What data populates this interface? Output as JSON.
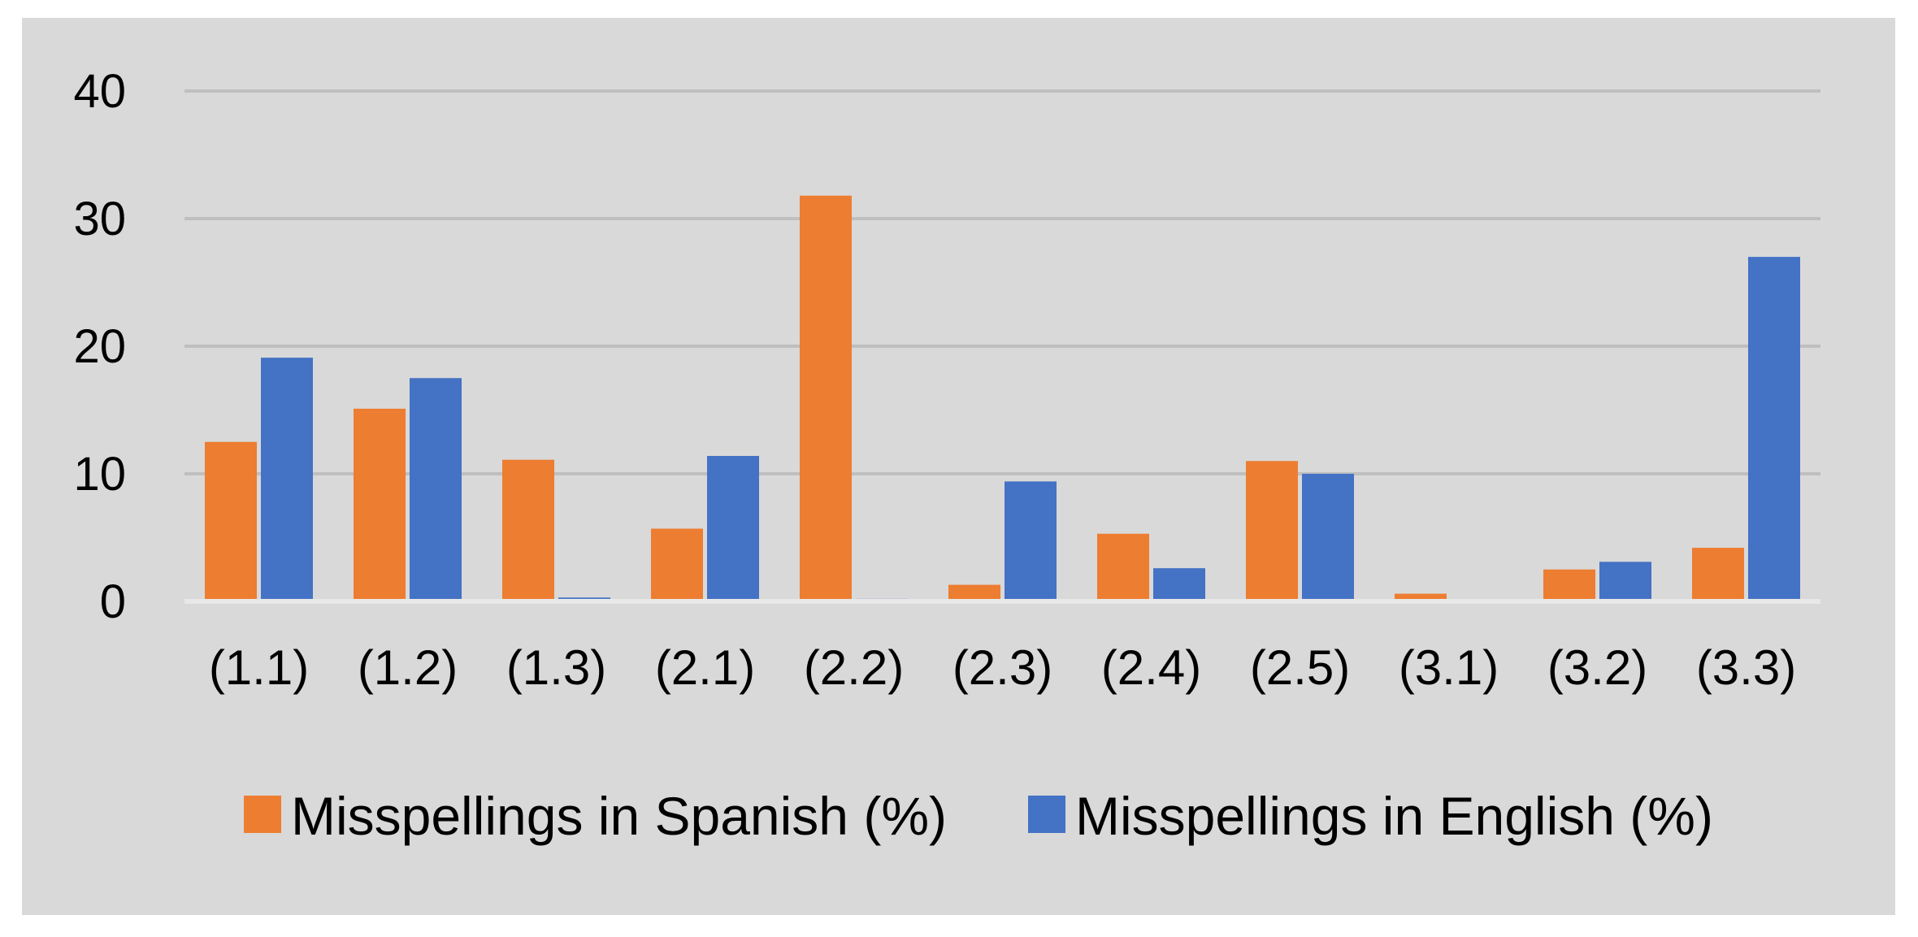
{
  "chart_data": {
    "type": "bar",
    "title": "",
    "xlabel": "",
    "ylabel": "",
    "categories": [
      "(1.1)",
      "(1.2)",
      "(1.3)",
      "(2.1)",
      "(2.2)",
      "(2.3)",
      "(2.4)",
      "(2.5)",
      "(3.1)",
      "(3.2)",
      "(3.3)"
    ],
    "series": [
      {
        "name": "Misspellings in Spanish (%)",
        "color": "#ed7d31",
        "values": [
          12.5,
          15.1,
          11.1,
          5.7,
          31.8,
          1.3,
          5.3,
          11.0,
          0.6,
          2.5,
          4.2
        ]
      },
      {
        "name": "Misspellings in English (%)",
        "color": "#4472c4",
        "values": [
          19.1,
          17.5,
          0.3,
          11.4,
          0.2,
          9.4,
          2.6,
          10.0,
          0,
          3.1,
          27.0
        ]
      }
    ],
    "ylim": [
      0,
      40
    ],
    "yticks": [
      0,
      10,
      20,
      30,
      40
    ],
    "grid": true,
    "legend_position": "bottom",
    "background": "#d9d9d9"
  }
}
